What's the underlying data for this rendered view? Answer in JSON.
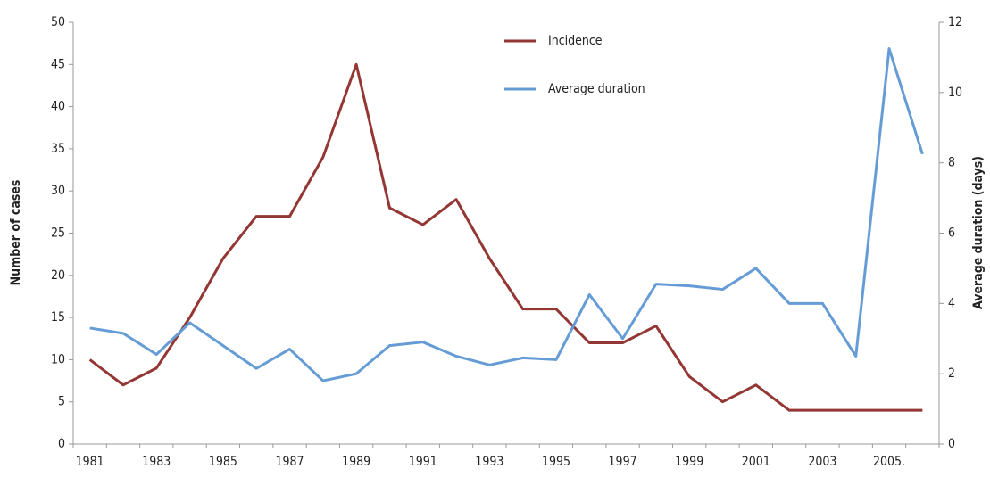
{
  "chart_data": {
    "type": "line",
    "categories": [
      "1981",
      null,
      "1983",
      null,
      "1985",
      null,
      "1987",
      null,
      "1989",
      null,
      "1991",
      null,
      "1993",
      null,
      "1995",
      null,
      "1997",
      null,
      "1999",
      null,
      "2001",
      null,
      "2003",
      null,
      "2005.",
      null
    ],
    "series": [
      {
        "name": "Incidence",
        "color": "#943634",
        "values": [
          10,
          7,
          9,
          15,
          22,
          27,
          27,
          34,
          45,
          28,
          26,
          29,
          22,
          16,
          16,
          12,
          12,
          14,
          8,
          5,
          7,
          4,
          4,
          4,
          4,
          4
        ]
      },
      {
        "name": "Average duration",
        "color": "#659cd6",
        "axis": "y2",
        "values": [
          3.3,
          3.15,
          2.55,
          3.45,
          2.8,
          2.15,
          2.7,
          1.8,
          2.0,
          2.8,
          2.9,
          2.5,
          2.25,
          2.45,
          2.4,
          4.25,
          3.0,
          4.55,
          4.5,
          4.4,
          5.0,
          4.0,
          4.0,
          2.5,
          11.25,
          8.25
        ]
      }
    ],
    "ylabel": "Number of cases",
    "y2label": "Average duration (days)",
    "ylim": [
      0,
      50
    ],
    "yticks": [
      0,
      5,
      10,
      15,
      20,
      25,
      30,
      35,
      40,
      45,
      50
    ],
    "y2lim": [
      0,
      12
    ],
    "y2ticks": [
      0,
      2,
      4,
      6,
      8,
      10,
      12
    ],
    "grid": false,
    "legend": "top"
  }
}
